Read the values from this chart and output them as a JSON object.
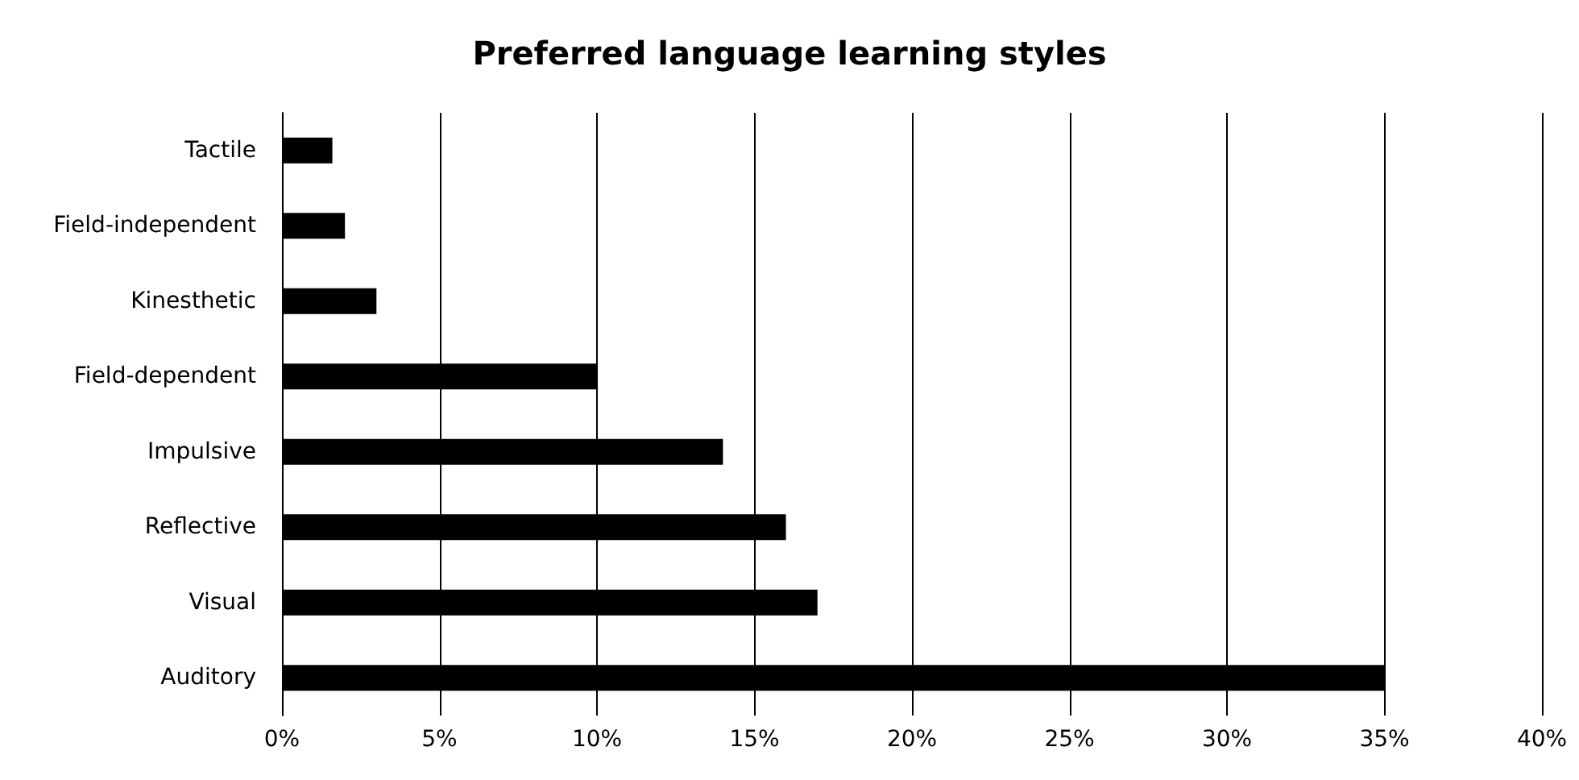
{
  "chart_data": {
    "type": "bar",
    "orientation": "horizontal",
    "title": "Preferred language learning styles",
    "categories": [
      "Tactile",
      "Field-independent",
      "Kinesthetic",
      "Field-dependent",
      "Impulsive",
      "Reflective",
      "Visual",
      "Auditory"
    ],
    "values": [
      1.6,
      2,
      3,
      10,
      14,
      16,
      17,
      35
    ],
    "color": "#000000",
    "xlim": [
      0,
      40
    ],
    "xticks": [
      {
        "value": 0,
        "label": "0%"
      },
      {
        "value": 5,
        "label": "5%"
      },
      {
        "value": 10,
        "label": "10%"
      },
      {
        "value": 15,
        "label": "15%"
      },
      {
        "value": 20,
        "label": "20%"
      },
      {
        "value": 25,
        "label": "25%"
      },
      {
        "value": 30,
        "label": "30%"
      },
      {
        "value": 35,
        "label": "35%"
      },
      {
        "value": 40,
        "label": "40%"
      }
    ],
    "grid": "x"
  }
}
